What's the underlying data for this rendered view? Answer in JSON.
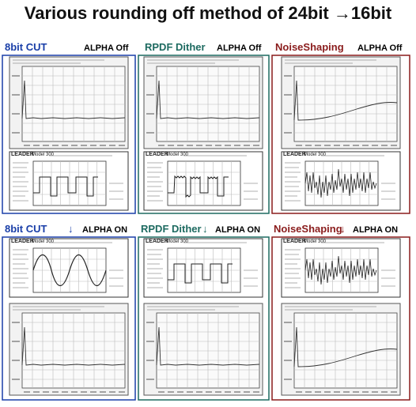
{
  "title": "Various rounding off method of 24bit →16bit",
  "panels": [
    {
      "method": "8bit CUT",
      "alpha": "ALPHA Off",
      "scope_brand": "LEADER",
      "scope_model": "Model 300"
    },
    {
      "method": "RPDF Dither",
      "alpha": "ALPHA Off",
      "scope_brand": "LEADER",
      "scope_model": "Model 300"
    },
    {
      "method": "NoiseShaping",
      "alpha": "ALPHA Off",
      "scope_brand": "LEADER",
      "scope_model": "Model 300"
    },
    {
      "method": "8bit CUT",
      "arrow": "↓",
      "alpha": "ALPHA ON",
      "scope_brand": "LEADER",
      "scope_model": "Model 300"
    },
    {
      "method": "RPDF Dither",
      "arrow": "↓",
      "alpha": "ALPHA ON",
      "scope_brand": "LEADER",
      "scope_model": "Model 300"
    },
    {
      "method": "NoiseShaping",
      "arrow": "↓",
      "alpha": "ALPHA ON",
      "scope_brand": "LEADER",
      "scope_model": "Model 300"
    }
  ]
}
